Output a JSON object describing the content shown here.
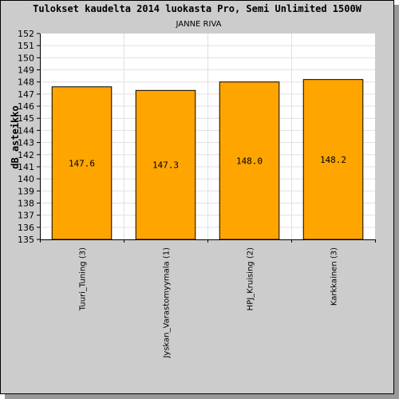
{
  "chart_data": {
    "type": "bar",
    "title": "Tulokset kaudelta 2014 luokasta Pro, Semi Unlimited 1500W",
    "subtitle": "JANNE RIVA",
    "ylabel": "dB asteikko",
    "xlabel": "",
    "ylim": [
      135,
      152
    ],
    "ytick_step": 1,
    "grid": true,
    "categories": [
      "Tuuri_Tuning (3)",
      "Jyskan_Varastomyymala (1)",
      "HPJ_Kruising (2)",
      "Karkkainen (3)"
    ],
    "values": [
      147.6,
      147.3,
      148.0,
      148.2
    ],
    "data_labels": [
      "147.6",
      "147.3",
      "148.0",
      "148.2"
    ],
    "colors": {
      "bar": "#ffa500",
      "plot_background": "#ffffff",
      "frame_background": "#cccccc",
      "grid": "#e0e0e0"
    }
  }
}
